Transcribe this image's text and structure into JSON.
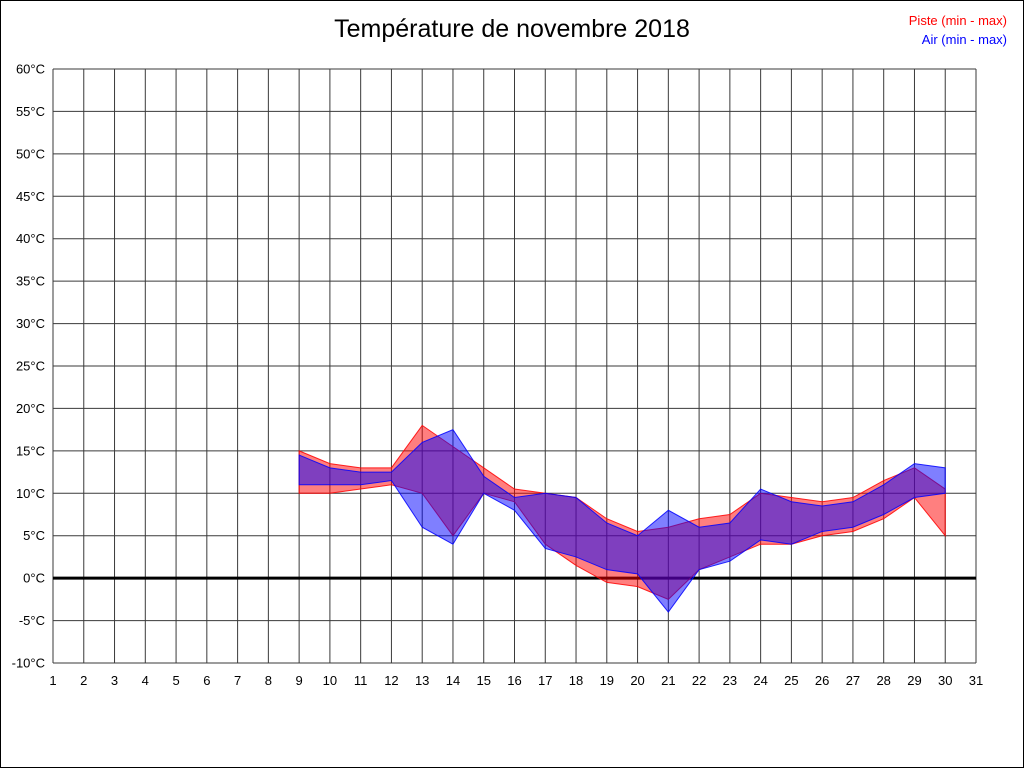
{
  "title": "Température de novembre 2018",
  "legend": {
    "piste_label": "Piste (min - max)",
    "air_label": "Air (min - max)",
    "piste_color": "#ff0000",
    "air_color": "#0000ff"
  },
  "chart_data": {
    "type": "area",
    "title": "Température de novembre 2018",
    "xlabel": "",
    "ylabel": "",
    "x": [
      9,
      10,
      11,
      12,
      13,
      14,
      15,
      16,
      17,
      18,
      19,
      20,
      21,
      22,
      23,
      24,
      25,
      26,
      27,
      28,
      29,
      30
    ],
    "series": [
      {
        "id": "piste",
        "name": "Piste (min - max)",
        "color": "#ff0000",
        "fill": "rgba(255,0,0,0.5)",
        "min": [
          10,
          10,
          10.5,
          11,
          10,
          5,
          10,
          9,
          4,
          1.5,
          -0.5,
          -1,
          -2.5,
          1,
          2.5,
          4,
          4,
          5,
          5.5,
          7,
          9.5,
          5
        ],
        "max": [
          15,
          13.5,
          13,
          13,
          18,
          15.5,
          13,
          10.5,
          10,
          9.5,
          7,
          5.5,
          6,
          7,
          7.5,
          10,
          9.5,
          9,
          9.5,
          11.5,
          13,
          10.5
        ]
      },
      {
        "id": "air",
        "name": "Air (min - max)",
        "color": "#0000ff",
        "fill": "rgba(0,0,255,0.5)",
        "min": [
          11,
          11,
          11,
          11.5,
          6,
          4,
          10,
          8,
          3.5,
          2.5,
          1,
          0.5,
          -4,
          1,
          2,
          4.5,
          4,
          5.5,
          6,
          7.5,
          9.5,
          10
        ],
        "max": [
          14.5,
          13,
          12.5,
          12.5,
          16,
          17.5,
          12,
          9.5,
          10,
          9.5,
          6.5,
          5,
          8,
          6,
          6.5,
          10.5,
          9,
          8.5,
          9,
          11,
          13.5,
          13
        ]
      }
    ],
    "xlim": [
      1,
      31
    ],
    "ylim": [
      -10,
      60
    ],
    "x_ticks": [
      1,
      2,
      3,
      4,
      5,
      6,
      7,
      8,
      9,
      10,
      11,
      12,
      13,
      14,
      15,
      16,
      17,
      18,
      19,
      20,
      21,
      22,
      23,
      24,
      25,
      26,
      27,
      28,
      29,
      30,
      31
    ],
    "y_ticks": [
      60,
      55,
      50,
      45,
      40,
      35,
      30,
      25,
      20,
      15,
      10,
      5,
      0,
      -5,
      -10
    ],
    "y_tick_suffix": "°C",
    "grid": true,
    "grid_color": "#3a3a3a",
    "zero_line": true,
    "zero_line_color": "#000000",
    "legend_position": "top-right",
    "text_color": "#000000"
  }
}
